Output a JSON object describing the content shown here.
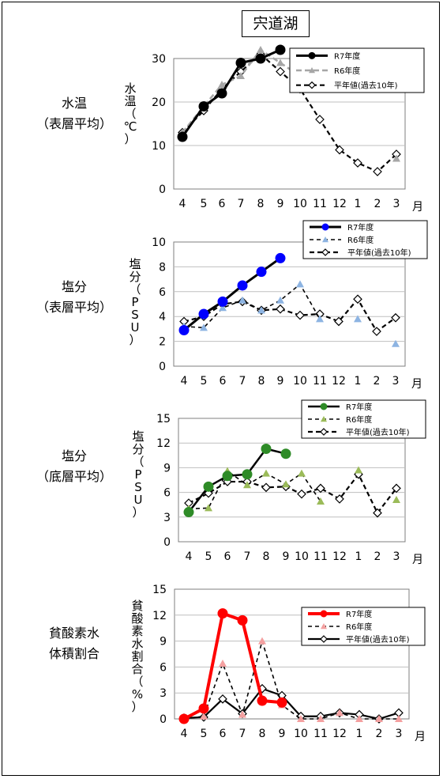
{
  "title": "宍道湖",
  "legend": [
    "R7年度",
    "R6年度",
    "平年値(過去10年)"
  ],
  "month_unit": "月",
  "colors": {
    "r6_gray": "#a6a6a6",
    "r6_lightblue": "#8db4e2",
    "r6_green": "#9bbb59",
    "r6_pink": "#f4a0a0",
    "r7_black": "#000000",
    "r7_blue": "#0000ff",
    "r7_green": "#2e8b27",
    "r7_red": "#ff0000",
    "grid": "#bfbfbf"
  },
  "rows": [
    {
      "label_lines": [
        "水温",
        "（表層平均）"
      ],
      "ylabel_lines": [
        "水",
        "温",
        "（",
        "℃",
        "）"
      ]
    },
    {
      "label_lines": [
        "塩分",
        "（表層平均）"
      ],
      "ylabel_lines": [
        "塩",
        "分",
        "（",
        "P",
        "S",
        "U",
        "）"
      ]
    },
    {
      "label_lines": [
        "塩分",
        "（底層平均）"
      ],
      "ylabel_lines": [
        "塩",
        "分",
        "（",
        "P",
        "S",
        "U",
        "）"
      ]
    },
    {
      "label_lines": [
        "貧酸素水",
        "体積割合"
      ],
      "ylabel_lines": [
        "貧",
        "酸",
        "素",
        "水",
        "割",
        "合",
        "（",
        "%",
        "）"
      ]
    }
  ],
  "chart_data": [
    {
      "type": "line",
      "categories": [
        "4",
        "5",
        "6",
        "7",
        "8",
        "9",
        "10",
        "11",
        "12",
        "1",
        "2",
        "3"
      ],
      "ylim": [
        0,
        30
      ],
      "yticks": [
        0,
        10,
        20,
        30
      ],
      "grid": true,
      "legend_position": "top-right",
      "series": [
        {
          "name": "R7年度",
          "values": [
            12,
            19,
            22,
            29,
            30,
            32,
            null,
            null,
            null,
            null,
            null,
            null
          ]
        },
        {
          "name": "R6年度",
          "values": [
            13,
            19,
            24,
            26,
            32,
            29,
            26,
            null,
            null,
            null,
            null,
            7
          ]
        },
        {
          "name": "平年値(過去10年)",
          "values": [
            13,
            18,
            23,
            27,
            31,
            27,
            23,
            16,
            9,
            6,
            4,
            8
          ]
        }
      ]
    },
    {
      "type": "line",
      "categories": [
        "4",
        "5",
        "6",
        "7",
        "8",
        "9",
        "10",
        "11",
        "12",
        "1",
        "2",
        "3"
      ],
      "ylim": [
        0,
        10
      ],
      "yticks": [
        0,
        2,
        4,
        6,
        8,
        10
      ],
      "grid": true,
      "legend_position": "top-right",
      "series": [
        {
          "name": "R7年度",
          "values": [
            2.9,
            4.2,
            5.2,
            6.5,
            7.6,
            8.7,
            null,
            null,
            null,
            null,
            null,
            null
          ]
        },
        {
          "name": "R6年度",
          "values": [
            3.2,
            3.1,
            4.7,
            5.3,
            4.5,
            5.3,
            6.6,
            3.8,
            null,
            3.8,
            null,
            1.8
          ]
        },
        {
          "name": "平年値(過去10年)",
          "values": [
            3.6,
            4.0,
            5.0,
            5.2,
            4.5,
            4.6,
            4.1,
            4.2,
            3.6,
            5.4,
            2.8,
            3.9
          ]
        }
      ]
    },
    {
      "type": "line",
      "categories": [
        "4",
        "5",
        "6",
        "7",
        "8",
        "9",
        "10",
        "11",
        "12",
        "1",
        "2",
        "3"
      ],
      "ylim": [
        0,
        15
      ],
      "yticks": [
        0,
        3,
        6,
        9,
        12,
        15
      ],
      "grid": true,
      "legend_position": "top-right",
      "series": [
        {
          "name": "R7年度",
          "values": [
            3.6,
            6.7,
            8.0,
            8.2,
            11.3,
            10.7,
            null,
            null,
            null,
            null,
            null,
            null
          ]
        },
        {
          "name": "R6年度",
          "values": [
            4.0,
            4.1,
            8.6,
            6.9,
            8.3,
            7.0,
            8.3,
            4.9,
            null,
            8.7,
            null,
            5.1
          ]
        },
        {
          "name": "平年値(過去10年)",
          "values": [
            4.7,
            5.9,
            7.3,
            7.3,
            6.6,
            6.7,
            5.8,
            6.5,
            5.2,
            8.2,
            3.5,
            6.5
          ]
        }
      ]
    },
    {
      "type": "line",
      "categories": [
        "4",
        "5",
        "6",
        "7",
        "8",
        "9",
        "10",
        "11",
        "12",
        "1",
        "2",
        "3"
      ],
      "ylim": [
        0,
        15
      ],
      "yticks": [
        0,
        3,
        6,
        9,
        12,
        15
      ],
      "grid": true,
      "legend_position": "top-right",
      "series": [
        {
          "name": "R7年度",
          "values": [
            0.0,
            1.2,
            12.2,
            11.4,
            2.1,
            1.9,
            null,
            null,
            null,
            null,
            null,
            null
          ]
        },
        {
          "name": "R6年度",
          "values": [
            0.0,
            0.3,
            6.4,
            0.5,
            9.0,
            1.6,
            0.0,
            0.0,
            0.7,
            0.0,
            0.0,
            0.0
          ]
        },
        {
          "name": "平年値(過去10年)",
          "values": [
            0.1,
            0.2,
            2.3,
            0.6,
            3.5,
            2.7,
            0.3,
            0.3,
            0.7,
            0.5,
            0.0,
            0.7
          ]
        }
      ]
    }
  ]
}
